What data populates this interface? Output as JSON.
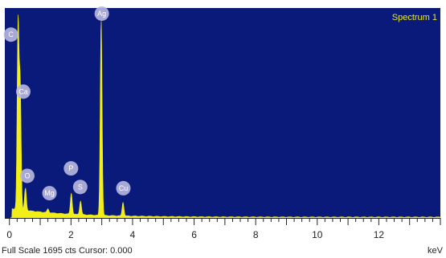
{
  "colors": {
    "plot_background": "#0a1a7a",
    "spectrum_fill": "#f2ee18",
    "label_bubble": "#b8b8e0",
    "axis": "#222222",
    "title": "#e8e81a"
  },
  "footer": {
    "full_scale": "Full Scale 1695 cts Cursor: 0.000",
    "unit": "keV"
  },
  "chart_data": {
    "type": "area",
    "title": "Spectrum 1",
    "xlabel": "keV",
    "ylabel": "",
    "xlim": [
      -0.15,
      14
    ],
    "ylim": [
      0,
      1695
    ],
    "x_ticks": [
      0,
      2,
      4,
      6,
      8,
      10,
      12
    ],
    "grid": false,
    "peaks": [
      {
        "element": "C",
        "x": 0.28,
        "height": 1500,
        "width": 0.06
      },
      {
        "element": "Ca",
        "x": 0.35,
        "height": 1000,
        "width": 0.06
      },
      {
        "element": "O",
        "x": 0.52,
        "height": 180,
        "width": 0.06
      },
      {
        "element": "Mg",
        "x": 1.25,
        "height": 30,
        "width": 0.06
      },
      {
        "element": "P",
        "x": 2.01,
        "height": 170,
        "width": 0.06
      },
      {
        "element": "S",
        "x": 2.31,
        "height": 110,
        "width": 0.06
      },
      {
        "element": "Ag",
        "x": 2.98,
        "height": 1580,
        "width": 0.06
      },
      {
        "element": "Cu",
        "x": 3.69,
        "height": 110,
        "width": 0.06
      }
    ],
    "peak_labels": [
      {
        "text": "C",
        "x": 0.05,
        "y": 1480
      },
      {
        "text": "Ca",
        "x": 0.45,
        "y": 1020
      },
      {
        "text": "O",
        "x": 0.58,
        "y": 340
      },
      {
        "text": "Mg",
        "x": 1.3,
        "y": 200
      },
      {
        "text": "P",
        "x": 2.0,
        "y": 400
      },
      {
        "text": "S",
        "x": 2.3,
        "y": 250
      },
      {
        "text": "Ag",
        "x": 3.0,
        "y": 1650
      },
      {
        "text": "Cu",
        "x": 3.7,
        "y": 240
      }
    ]
  }
}
